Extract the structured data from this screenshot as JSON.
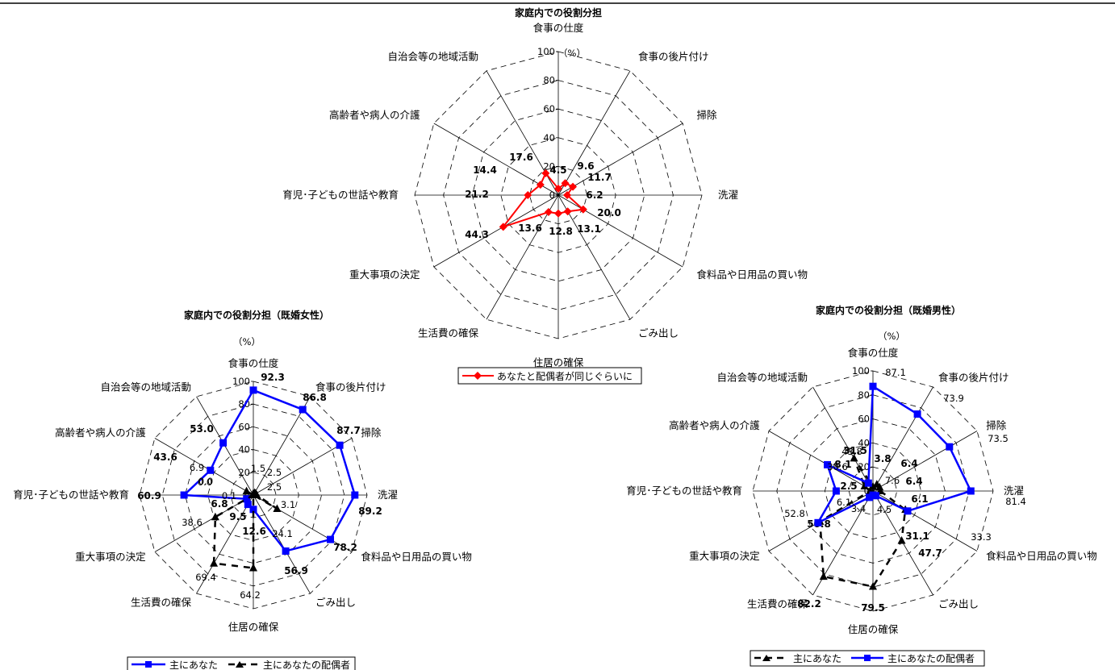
{
  "categories": [
    "食事の仕度",
    "食事の後片付け",
    "掃除",
    "洗濯",
    "食料品や日用品の買い物",
    "ごみ出し",
    "住居の確保",
    "生活費の確保",
    "重大事項の決定",
    "育児･子どもの世話や教育",
    "高齢者や病人の介護",
    "自治会等の地域活動"
  ],
  "colors": {
    "red": "#ff0000",
    "blue": "#0000ff",
    "black": "#000000"
  },
  "chart_data": [
    {
      "type": "radar",
      "title": "家庭内での役割分担",
      "unit": "（%）",
      "rmax": 100,
      "ticks": [
        0,
        20,
        40,
        60,
        80,
        100
      ],
      "series": [
        {
          "name": "あなたと配偶者が同じぐらいに",
          "color": "#ff0000",
          "values": [
            4.5,
            9.6,
            11.7,
            6.2,
            20.0,
            13.1,
            12.8,
            13.6,
            44.3,
            21.2,
            14.4,
            17.6
          ]
        }
      ]
    },
    {
      "type": "radar",
      "title": "家庭内での役割分担（既婚女性）",
      "unit": "（%）",
      "rmax": 100,
      "ticks": [
        0,
        20,
        40,
        60,
        80,
        100
      ],
      "series": [
        {
          "name": "主にあなた",
          "color": "#0000ff",
          "values": [
            92.3,
            86.8,
            87.7,
            89.2,
            78.2,
            56.9,
            12.6,
            9.5,
            6.8,
            60.9,
            43.6,
            53.0
          ]
        },
        {
          "name": "主にあなたの配偶者",
          "color": "#000000",
          "values": [
            1.5,
            2.5,
            2.5,
            3.1,
            24.1,
            0.0,
            64.2,
            69.4,
            38.6,
            0.1,
            6.9,
            0.0
          ]
        }
      ]
    },
    {
      "type": "radar",
      "title": "家庭内での役割分担（既婚男性）",
      "unit": "（%）",
      "rmax": 100,
      "ticks": [
        0,
        20,
        40,
        60,
        80,
        100
      ],
      "series": [
        {
          "name": "主にあなた",
          "color": "#000000",
          "values": [
            3.8,
            6.4,
            6.4,
            6.1,
            31.1,
            47.7,
            79.5,
            82.2,
            50.8,
            2.5,
            8.1,
            31.5
          ]
        },
        {
          "name": "主にあなたの配偶者",
          "color": "#0000ff",
          "values": [
            87.1,
            73.9,
            73.5,
            81.4,
            33.3,
            4.5,
            3.4,
            6.1,
            52.8,
            30.6,
            43.8,
            7.6
          ]
        }
      ]
    }
  ]
}
